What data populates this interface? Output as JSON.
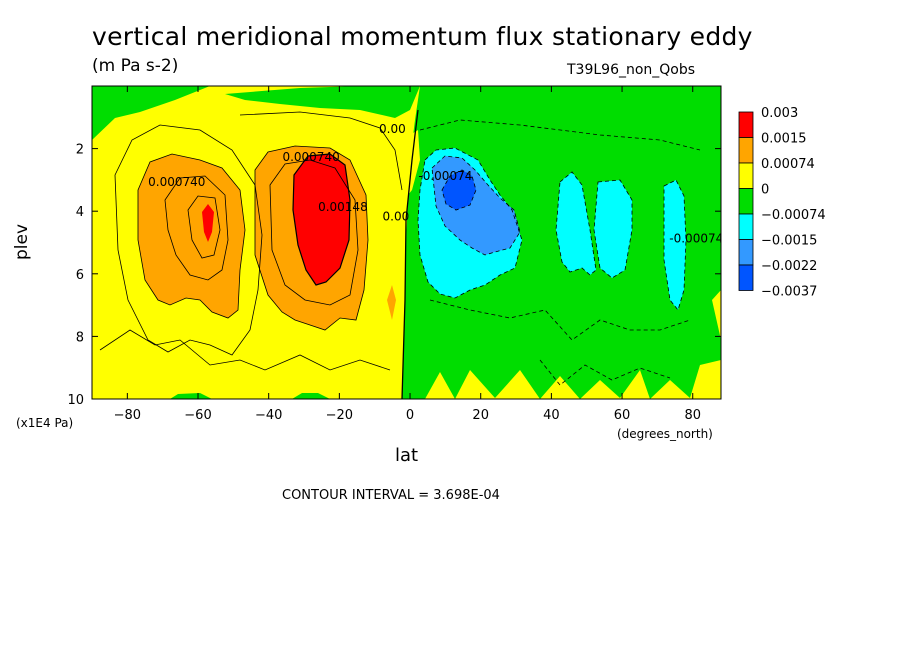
{
  "chart_data": {
    "type": "contour",
    "title": "vertical meridional momentum flux stationary eddy",
    "units": "(m Pa s-2)",
    "run_name": "T39L96_non_Qobs",
    "xlabel": "lat",
    "x_units": "(degrees_north)",
    "ylabel": "plev",
    "y_units": "(x1E4 Pa)",
    "xlim": [
      -90,
      88
    ],
    "ylim": [
      10,
      0
    ],
    "x_ticks": [
      -80,
      -60,
      -40,
      -20,
      0,
      20,
      40,
      60,
      80
    ],
    "y_ticks": [
      2,
      4,
      6,
      8,
      10
    ],
    "contour_interval_text": "CONTOUR INTERVAL = 3.698E-04",
    "legend": {
      "placement": "right",
      "labels": [
        "0.003",
        "0.0015",
        "0.00074",
        "0",
        "−0.00074",
        "−0.0015",
        "−0.0022",
        "−0.0037"
      ],
      "colors": [
        "#ff0000",
        "#ffa500",
        "#ffff00",
        "#00dd00",
        "#00ffff",
        "#3399ff",
        "#0055ff"
      ]
    },
    "contour_labels": [
      {
        "text": "0.00",
        "x": -5,
        "y": 1.5
      },
      {
        "text": "0.000740",
        "x": -66,
        "y": 3.2
      },
      {
        "text": "0.000740",
        "x": -28,
        "y": 2.4
      },
      {
        "text": "0.00148",
        "x": -19,
        "y": 4.0
      },
      {
        "text": "0.00",
        "x": -4,
        "y": 4.3
      },
      {
        "text": "-0.00074",
        "x": 10,
        "y": 3.0
      },
      {
        "text": "-0.00074",
        "x": 81,
        "y": 5.0
      }
    ]
  }
}
